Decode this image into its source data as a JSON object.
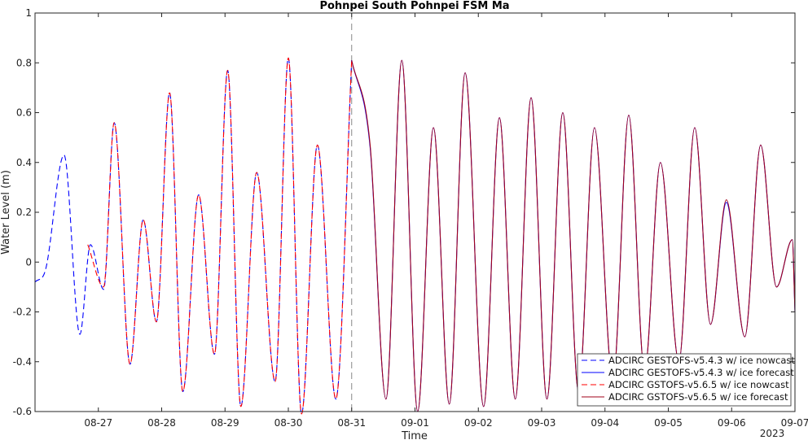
{
  "chart_data": {
    "type": "line",
    "title": "Pohnpei South Pohnpei FSM Ma",
    "xlabel": "Time",
    "ylabel": "Water Level (m)",
    "year_label": "2023",
    "ylim": [
      -0.6,
      1
    ],
    "yticks": [
      -0.6,
      -0.4,
      -0.2,
      0,
      0.2,
      0.4,
      0.6,
      0.8,
      1
    ],
    "ytick_labels": [
      "-0.6",
      "-0.4",
      "-0.2",
      "0",
      "0.2",
      "0.4",
      "0.6",
      "0.8",
      "1"
    ],
    "xlim": [
      "2023-08-26 00:00",
      "2023-09-07 00:00"
    ],
    "xticks": [
      "08-27",
      "08-28",
      "08-29",
      "08-30",
      "08-31",
      "09-01",
      "09-02",
      "09-03",
      "09-04",
      "09-05",
      "09-06",
      "09-07"
    ],
    "nowcast_end": "2023-08-31 00:00",
    "grid": false,
    "legend_position": "bottom-right",
    "colors": {
      "blue": "#0000ff",
      "red": "#ff0000",
      "dark_red": "#a0001a",
      "divider": "#888888"
    },
    "series": [
      {
        "name": "ADCIRC GESTOFS-v5.4.3 w/ ice nowcast",
        "color": "#0000ff",
        "dash": "dashed",
        "x": [
          "2023-08-26 00:00",
          "2023-08-26 04:00",
          "2023-08-26 11:00",
          "2023-08-26 17:00",
          "2023-08-26 21:00",
          "2023-08-27 02:00",
          "2023-08-27 06:00",
          "2023-08-27 12:00",
          "2023-08-27 17:00",
          "2023-08-27 22:00",
          "2023-08-28 03:00",
          "2023-08-28 08:00",
          "2023-08-28 14:00",
          "2023-08-28 20:00",
          "2023-08-29 01:00",
          "2023-08-29 06:00",
          "2023-08-29 12:00",
          "2023-08-29 19:00",
          "2023-08-30 00:00",
          "2023-08-30 05:00",
          "2023-08-30 11:00",
          "2023-08-30 18:00",
          "2023-08-31 00:00"
        ],
        "y": [
          -0.08,
          -0.03,
          0.43,
          -0.29,
          0.07,
          -0.11,
          0.56,
          -0.41,
          0.17,
          -0.24,
          0.68,
          -0.52,
          0.27,
          -0.37,
          0.77,
          -0.58,
          0.36,
          -0.48,
          0.82,
          -0.61,
          0.47,
          -0.55,
          0.81
        ]
      },
      {
        "name": "ADCIRC GESTOFS-v5.4.3 w/ ice forecast",
        "color": "#0000ff",
        "dash": "solid",
        "x": [
          "2023-08-31 00:00",
          "2023-08-31 07:00",
          "2023-08-31 13:00",
          "2023-08-31 19:00",
          "2023-09-01 01:00",
          "2023-09-01 07:00",
          "2023-09-01 13:00",
          "2023-09-01 19:00",
          "2023-09-02 02:00",
          "2023-09-02 08:00",
          "2023-09-02 14:00",
          "2023-09-02 20:00",
          "2023-09-03 02:00",
          "2023-09-03 08:00",
          "2023-09-03 14:00",
          "2023-09-03 20:00",
          "2023-09-04 03:00",
          "2023-09-04 09:00",
          "2023-09-04 15:00",
          "2023-09-04 21:00",
          "2023-09-05 04:00",
          "2023-09-05 10:00",
          "2023-09-05 16:00",
          "2023-09-05 22:00",
          "2023-09-06 05:00",
          "2023-09-06 11:00",
          "2023-09-06 17:00",
          "2023-09-06 23:00",
          "2023-09-07 00:00"
        ],
        "y": [
          0.81,
          0.46,
          -0.55,
          0.81,
          -0.6,
          0.54,
          -0.57,
          0.76,
          -0.58,
          0.58,
          -0.55,
          0.66,
          -0.55,
          0.6,
          -0.52,
          0.54,
          -0.48,
          0.59,
          -0.44,
          0.4,
          -0.4,
          0.54,
          -0.25,
          0.24,
          -0.3,
          0.47,
          -0.1,
          0.09,
          -0.2
        ]
      },
      {
        "name": "ADCIRC GSTOFS-v5.6.5 w/ ice nowcast",
        "color": "#ff0000",
        "dash": "dashed",
        "x": [
          "2023-08-26 20:00",
          "2023-08-27 02:00",
          "2023-08-27 06:00",
          "2023-08-27 12:00",
          "2023-08-27 17:00",
          "2023-08-27 22:00",
          "2023-08-28 03:00",
          "2023-08-28 08:00",
          "2023-08-28 14:00",
          "2023-08-28 20:00",
          "2023-08-29 01:00",
          "2023-08-29 06:00",
          "2023-08-29 12:00",
          "2023-08-29 19:00",
          "2023-08-30 00:00",
          "2023-08-30 05:00",
          "2023-08-30 11:00",
          "2023-08-30 18:00",
          "2023-08-31 00:00"
        ],
        "y": [
          0.07,
          -0.1,
          0.56,
          -0.41,
          0.17,
          -0.24,
          0.68,
          -0.52,
          0.27,
          -0.37,
          0.77,
          -0.58,
          0.36,
          -0.48,
          0.82,
          -0.61,
          0.47,
          -0.55,
          0.81
        ]
      },
      {
        "name": "ADCIRC GSTOFS-v5.6.5 w/ ice forecast",
        "color": "#a0001a",
        "dash": "solid",
        "x": [
          "2023-08-31 00:00",
          "2023-08-31 07:00",
          "2023-08-31 13:00",
          "2023-08-31 19:00",
          "2023-09-01 01:00",
          "2023-09-01 07:00",
          "2023-09-01 13:00",
          "2023-09-01 19:00",
          "2023-09-02 02:00",
          "2023-09-02 08:00",
          "2023-09-02 14:00",
          "2023-09-02 20:00",
          "2023-09-03 02:00",
          "2023-09-03 08:00",
          "2023-09-03 14:00",
          "2023-09-03 20:00",
          "2023-09-04 03:00",
          "2023-09-04 09:00",
          "2023-09-04 15:00",
          "2023-09-04 21:00",
          "2023-09-05 04:00",
          "2023-09-05 10:00",
          "2023-09-05 16:00",
          "2023-09-05 22:00",
          "2023-09-06 05:00",
          "2023-09-06 11:00",
          "2023-09-06 17:00",
          "2023-09-06 23:00",
          "2023-09-07 00:00"
        ],
        "y": [
          0.81,
          0.47,
          -0.55,
          0.81,
          -0.6,
          0.54,
          -0.57,
          0.76,
          -0.58,
          0.58,
          -0.55,
          0.66,
          -0.55,
          0.6,
          -0.52,
          0.54,
          -0.48,
          0.59,
          -0.44,
          0.4,
          -0.4,
          0.54,
          -0.25,
          0.25,
          -0.3,
          0.47,
          -0.1,
          0.09,
          -0.2
        ]
      }
    ]
  }
}
